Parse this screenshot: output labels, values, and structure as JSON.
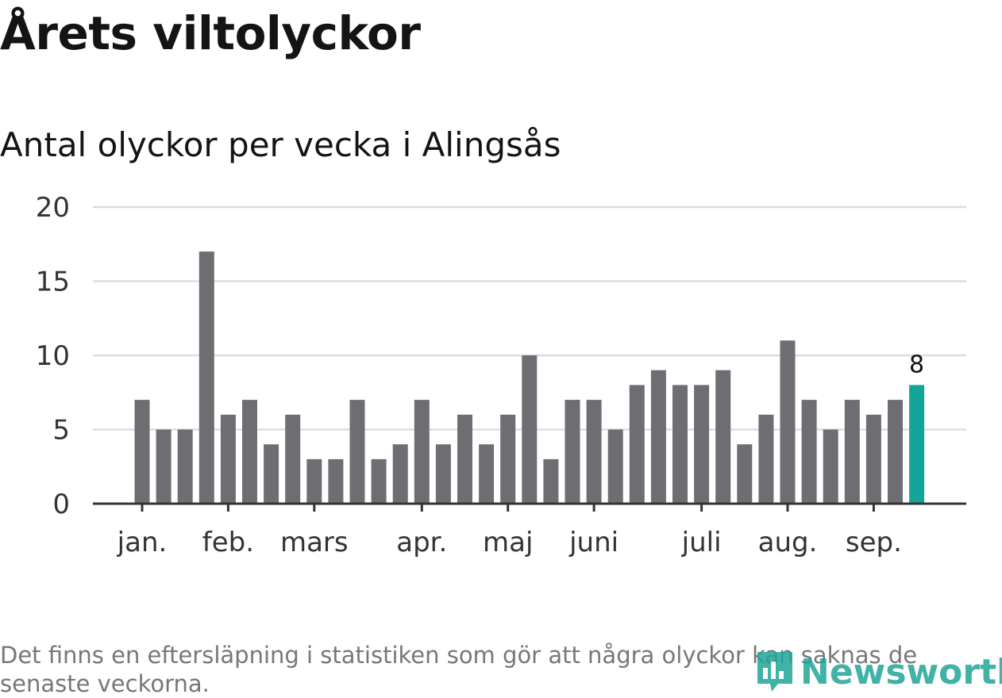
{
  "title": "Årets viltolyckor",
  "subtitle": "Antal olyckor per vecka i Alingsås",
  "footnote": "Det finns en eftersläpning i statistiken som gör att några olyckor kan saknas de senaste veckorna.",
  "logo_text": "Newsworthy",
  "colors": {
    "bar": "#6e6d72",
    "highlight": "#13a59a",
    "grid": "#dddddd",
    "axis": "#333333",
    "text": "#333333",
    "logo": "#1fa59a"
  },
  "chart_data": {
    "type": "bar",
    "ylim": [
      0,
      20
    ],
    "yticks": [
      "0",
      "5",
      "10",
      "15",
      "20"
    ],
    "month_labels": [
      "jan.",
      "feb.",
      "mars",
      "apr.",
      "maj",
      "juni",
      "juli",
      "aug.",
      "sep."
    ],
    "month_start_week_index": [
      0,
      4,
      8,
      13,
      17,
      21,
      26,
      30,
      34
    ],
    "values": [
      7,
      5,
      5,
      17,
      6,
      7,
      4,
      6,
      3,
      3,
      7,
      3,
      4,
      7,
      4,
      6,
      4,
      6,
      10,
      3,
      7,
      7,
      5,
      8,
      9,
      8,
      8,
      9,
      4,
      6,
      11,
      7,
      5,
      7,
      6,
      7,
      8
    ],
    "highlight_index": 36,
    "highlight_label": "8",
    "grid": true
  }
}
